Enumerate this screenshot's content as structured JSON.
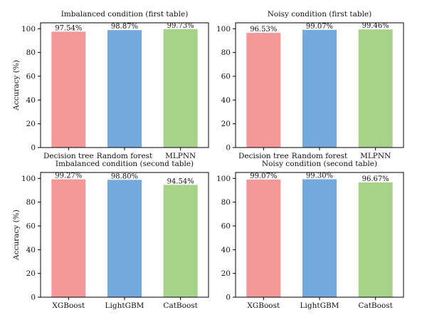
{
  "colors": {
    "bar_colors": [
      "#f4999a",
      "#74a9dd",
      "#a6d28a"
    ],
    "axis": "#000000"
  },
  "chart_data": [
    {
      "type": "bar",
      "title": "Imbalanced condition (first table)",
      "ylabel": "Accuracy (%)",
      "xlabel": "",
      "categories": [
        "Decision tree",
        "Random forest",
        "MLPNN"
      ],
      "values": [
        97.54,
        98.87,
        99.73
      ],
      "data_labels": [
        "97.54%",
        "98.87%",
        "99.73%"
      ],
      "ylim": [
        0,
        105
      ],
      "yticks": [
        0,
        20,
        40,
        60,
        80,
        100
      ],
      "grid": false
    },
    {
      "type": "bar",
      "title": "Noisy condition (first table)",
      "ylabel": "",
      "xlabel": "",
      "categories": [
        "Decision tree",
        "Random forest",
        "MLPNN"
      ],
      "values": [
        96.53,
        99.07,
        99.46
      ],
      "data_labels": [
        "96.53%",
        "99.07%",
        "99.46%"
      ],
      "ylim": [
        0,
        105
      ],
      "yticks": [
        0,
        20,
        40,
        60,
        80,
        100
      ],
      "grid": false
    },
    {
      "type": "bar",
      "title": "Imbalanced condition (second table)",
      "ylabel": "Accuracy (%)",
      "xlabel": "",
      "categories": [
        "XGBoost",
        "LightGBM",
        "CatBoost"
      ],
      "values": [
        99.27,
        98.8,
        94.54
      ],
      "data_labels": [
        "99.27%",
        "98.80%",
        "94.54%"
      ],
      "ylim": [
        0,
        105
      ],
      "yticks": [
        0,
        20,
        40,
        60,
        80,
        100
      ],
      "grid": false
    },
    {
      "type": "bar",
      "title": "Noisy condition (second table)",
      "ylabel": "",
      "xlabel": "",
      "categories": [
        "XGBoost",
        "LightGBM",
        "CatBoost"
      ],
      "values": [
        99.07,
        99.3,
        96.67
      ],
      "data_labels": [
        "99.07%",
        "99.30%",
        "96.67%"
      ],
      "ylim": [
        0,
        105
      ],
      "yticks": [
        0,
        20,
        40,
        60,
        80,
        100
      ],
      "grid": false
    }
  ]
}
